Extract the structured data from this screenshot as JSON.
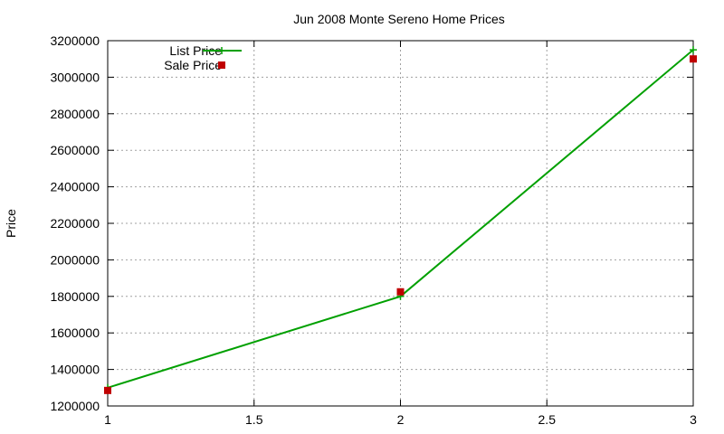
{
  "chart_data": {
    "type": "line",
    "title": "Jun 2008 Monte Sereno Home Prices",
    "xlabel": "",
    "ylabel": "Price",
    "xlim": [
      1,
      3
    ],
    "ylim": [
      1200000,
      3200000
    ],
    "xticks": [
      "1",
      "1.5",
      "2",
      "2.5",
      "3"
    ],
    "xtick_values": [
      1,
      1.5,
      2,
      2.5,
      3
    ],
    "yticks": [
      "1200000",
      "1400000",
      "1600000",
      "1800000",
      "2000000",
      "2200000",
      "2400000",
      "2600000",
      "2800000",
      "3000000",
      "3200000"
    ],
    "ytick_values": [
      1200000,
      1400000,
      1600000,
      1800000,
      2000000,
      2200000,
      2400000,
      2600000,
      2800000,
      3000000,
      3200000
    ],
    "grid": true,
    "legend_position": "top-left",
    "series": [
      {
        "name": "List Price",
        "style": "line-points",
        "color": "#00a000",
        "x": [
          1,
          2,
          3
        ],
        "y": [
          1300000,
          1800000,
          3150000
        ]
      },
      {
        "name": "Sale Price",
        "style": "points",
        "color": "#c00000",
        "x": [
          1,
          2,
          3
        ],
        "y": [
          1285000,
          1825000,
          3100000
        ]
      }
    ]
  }
}
